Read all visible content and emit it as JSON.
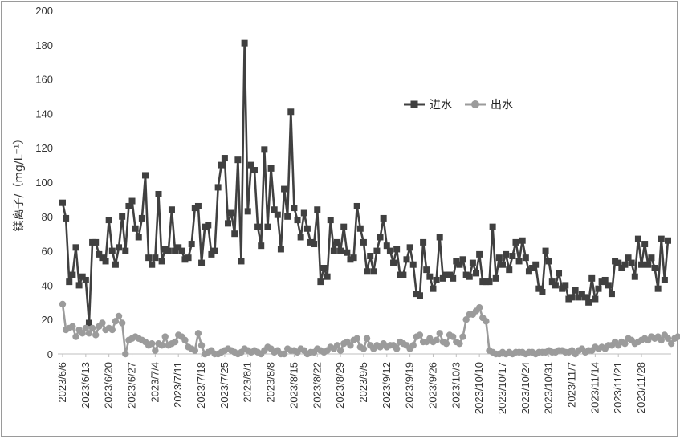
{
  "chart_data": {
    "type": "line",
    "ylabel": "镁离子/（mg/L⁻¹）",
    "ylim": [
      0,
      200
    ],
    "yticks": [
      "0",
      "20",
      "40",
      "60",
      "80",
      "100",
      "120",
      "140",
      "160",
      "180",
      "200"
    ],
    "xtick_labels": [
      "2023/6/6",
      "2023/6/13",
      "2023/6/20",
      "2023/6/27",
      "2023/7/4",
      "2023/7/11",
      "2023/7/18",
      "2023/7/25",
      "2023/8/1",
      "2023/8/8",
      "2023/8/15",
      "2023/8/22",
      "2023/8/29",
      "2023/9/5",
      "2023/9/12",
      "2023/9/19",
      "2023/9/26",
      "2023/10/3",
      "2023/10/10",
      "2023/10/17",
      "2023/10/24",
      "2023/10/31",
      "2023/11/7",
      "2023/11/14",
      "2023/11/21",
      "2023/11/28"
    ],
    "legend_position": "top-right",
    "grid": false,
    "colors": {
      "inlet": "#404040",
      "outlet": "#9b9b9b"
    },
    "series": [
      {
        "name": "进水",
        "marker": "square",
        "values": [
          88,
          79,
          42,
          46,
          62,
          40,
          45,
          43,
          18,
          65,
          65,
          58,
          56,
          54,
          78,
          60,
          52,
          62,
          80,
          60,
          86,
          89,
          73,
          68,
          79,
          104,
          56,
          52,
          56,
          93,
          54,
          61,
          60,
          84,
          60,
          62,
          60,
          55,
          56,
          64,
          85,
          86,
          53,
          74,
          75,
          58,
          60,
          97,
          110,
          114,
          76,
          82,
          70,
          113,
          54,
          181,
          83,
          110,
          107,
          74,
          63,
          119,
          74,
          108,
          84,
          81,
          61,
          96,
          80,
          141,
          85,
          78,
          68,
          82,
          73,
          65,
          64,
          84,
          42,
          50,
          45,
          78,
          60,
          65,
          60,
          74,
          59,
          55,
          56,
          86,
          73,
          65,
          48,
          57,
          48,
          60,
          68,
          79,
          63,
          60,
          53,
          61,
          46,
          46,
          55,
          62,
          52,
          35,
          34,
          65,
          49,
          45,
          38,
          43,
          68,
          44,
          46,
          46,
          44,
          54,
          52,
          55,
          46,
          45,
          53,
          47,
          58,
          42,
          42,
          42,
          74,
          44,
          56,
          52,
          58,
          49,
          57,
          65,
          54,
          66,
          56,
          48,
          50,
          52,
          38,
          36,
          60,
          54,
          42,
          40,
          47,
          38,
          40,
          32,
          33,
          37,
          33,
          35,
          33,
          30,
          44,
          32,
          38,
          42,
          43,
          40,
          35,
          54,
          53,
          50,
          52,
          56,
          53,
          45,
          67,
          52,
          64,
          52,
          56,
          50,
          38,
          67,
          43,
          66
        ],
        "marker_every": 1
      },
      {
        "name": "出水",
        "marker": "circle",
        "values": [
          29,
          14,
          15,
          16,
          10,
          14,
          12,
          15,
          12,
          15,
          11,
          16,
          18,
          14,
          15,
          14,
          19,
          22,
          18,
          0,
          8,
          9,
          10,
          9,
          8,
          7,
          5,
          6,
          2,
          6,
          5,
          10,
          5,
          6,
          7,
          11,
          10,
          8,
          4,
          3,
          2,
          12,
          5,
          0,
          1,
          2,
          0,
          0,
          1,
          2,
          3,
          2,
          1,
          0,
          1,
          3,
          2,
          1,
          2,
          1,
          0,
          2,
          4,
          3,
          1,
          2,
          0,
          0,
          3,
          2,
          2,
          1,
          3,
          2,
          0,
          1,
          1,
          3,
          2,
          1,
          2,
          4,
          3,
          5,
          2,
          6,
          7,
          5,
          8,
          9,
          4,
          3,
          9,
          5,
          3,
          5,
          4,
          6,
          4,
          5,
          5,
          3,
          7,
          6,
          5,
          3,
          5,
          10,
          11,
          7,
          7,
          9,
          7,
          8,
          12,
          7,
          6,
          11,
          10,
          7,
          6,
          10,
          20,
          23,
          23,
          25,
          27,
          21,
          19,
          2,
          1,
          0,
          0,
          1,
          0,
          1,
          0,
          1,
          1,
          1,
          0,
          1,
          1,
          0,
          1,
          1,
          1,
          2,
          1,
          1,
          2,
          2,
          1,
          1,
          2,
          0,
          2,
          3,
          1,
          2,
          2,
          4,
          3,
          4,
          3,
          5,
          5,
          7,
          5,
          7,
          6,
          9,
          8,
          6,
          7,
          8,
          9,
          8,
          10,
          9,
          10,
          8,
          11,
          9,
          6,
          9,
          10
        ],
        "marker_every": 1
      }
    ]
  }
}
